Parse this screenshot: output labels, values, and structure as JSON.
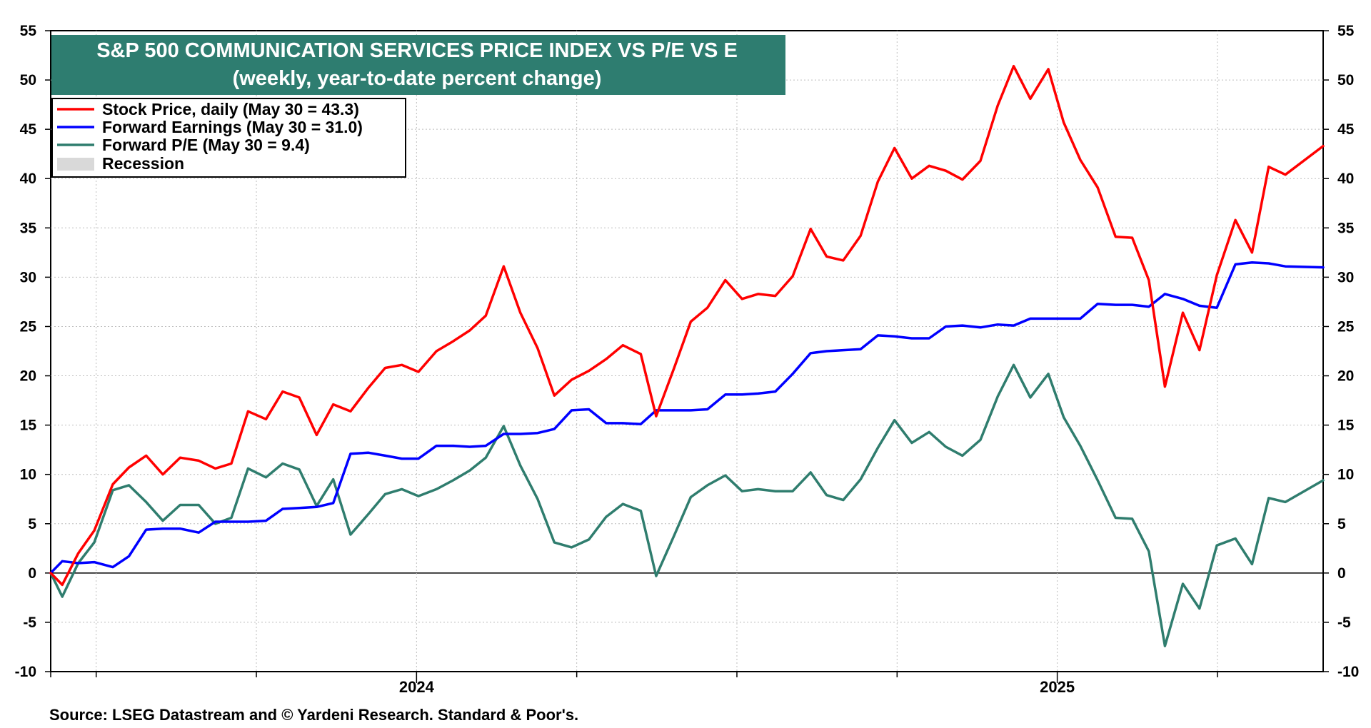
{
  "chart_data": {
    "type": "line",
    "title": "S&P 500 COMMUNICATION SERVICES PRICE INDEX VS P/E VS E",
    "subtitle": "(weekly, year-to-date percent change)",
    "source": "Source: LSEG Datastream and © Yardeni Research. Standard & Poor's.",
    "ylim": [
      -10,
      55
    ],
    "yticks": [
      55,
      50,
      45,
      40,
      35,
      30,
      25,
      20,
      15,
      10,
      5,
      0,
      -5,
      -10
    ],
    "xlim": [
      2023.429,
      2025.415
    ],
    "year_labels": [
      {
        "label": "2024",
        "x": 2024.0
      },
      {
        "label": "2025",
        "x": 2025.0
      }
    ],
    "grid": true,
    "legend_position": "top-left",
    "colors": {
      "title_bg": "#2e7d70",
      "stock_price": "#ff0000",
      "forward_earnings": "#0000ff",
      "forward_pe": "#2f7d6e",
      "recession": "#d9d9d9"
    },
    "legend": [
      {
        "key": "stock_price",
        "label": "Stock Price, daily (May 30 = 43.3)",
        "type": "line"
      },
      {
        "key": "forward_earnings",
        "label": "Forward Earnings (May 30 = 31.0)",
        "type": "line"
      },
      {
        "key": "forward_pe",
        "label": "Forward P/E (May 30 = 9.4)",
        "type": "line"
      },
      {
        "key": "recession",
        "label": "Recession",
        "type": "box"
      }
    ],
    "series": [
      {
        "name": "Stock Price, daily (May 30 = 43.3)",
        "key": "stock_price",
        "points": [
          [
            2023.429,
            0.0
          ],
          [
            2023.447,
            -1.2
          ],
          [
            2023.472,
            2.0
          ],
          [
            2023.497,
            4.3
          ],
          [
            2023.526,
            9.0
          ],
          [
            2023.551,
            10.7
          ],
          [
            2023.578,
            11.9
          ],
          [
            2023.604,
            10.0
          ],
          [
            2023.631,
            11.7
          ],
          [
            2023.66,
            11.4
          ],
          [
            2023.686,
            10.6
          ],
          [
            2023.711,
            11.1
          ],
          [
            2023.737,
            16.4
          ],
          [
            2023.765,
            15.6
          ],
          [
            2023.791,
            18.4
          ],
          [
            2023.817,
            17.8
          ],
          [
            2023.844,
            14.0
          ],
          [
            2023.87,
            17.1
          ],
          [
            2023.897,
            16.4
          ],
          [
            2023.925,
            18.8
          ],
          [
            2023.951,
            20.8
          ],
          [
            2023.977,
            21.1
          ],
          [
            2024.003,
            20.4
          ],
          [
            2024.031,
            22.5
          ],
          [
            2024.057,
            23.5
          ],
          [
            2024.083,
            24.6
          ],
          [
            2024.108,
            26.1
          ],
          [
            2024.136,
            31.1
          ],
          [
            2024.162,
            26.4
          ],
          [
            2024.189,
            22.8
          ],
          [
            2024.215,
            18.0
          ],
          [
            2024.242,
            19.6
          ],
          [
            2024.269,
            20.5
          ],
          [
            2024.296,
            21.7
          ],
          [
            2024.322,
            23.1
          ],
          [
            2024.35,
            22.2
          ],
          [
            2024.374,
            15.9
          ],
          [
            2024.402,
            20.8
          ],
          [
            2024.428,
            25.5
          ],
          [
            2024.454,
            26.9
          ],
          [
            2024.482,
            29.7
          ],
          [
            2024.508,
            27.8
          ],
          [
            2024.533,
            28.3
          ],
          [
            2024.56,
            28.1
          ],
          [
            2024.587,
            30.1
          ],
          [
            2024.615,
            34.9
          ],
          [
            2024.64,
            32.1
          ],
          [
            2024.666,
            31.7
          ],
          [
            2024.693,
            34.2
          ],
          [
            2024.72,
            39.7
          ],
          [
            2024.746,
            43.1
          ],
          [
            2024.773,
            40.0
          ],
          [
            2024.8,
            41.3
          ],
          [
            2024.826,
            40.8
          ],
          [
            2024.852,
            39.9
          ],
          [
            2024.88,
            41.8
          ],
          [
            2024.907,
            47.4
          ],
          [
            2024.932,
            51.4
          ],
          [
            2024.958,
            48.1
          ],
          [
            2024.986,
            51.1
          ],
          [
            2025.01,
            45.7
          ],
          [
            2025.036,
            41.9
          ],
          [
            2025.063,
            39.1
          ],
          [
            2025.091,
            34.1
          ],
          [
            2025.117,
            34.0
          ],
          [
            2025.143,
            29.7
          ],
          [
            2025.168,
            18.9
          ],
          [
            2025.196,
            26.4
          ],
          [
            2025.222,
            22.6
          ],
          [
            2025.249,
            30.2
          ],
          [
            2025.278,
            35.8
          ],
          [
            2025.304,
            32.5
          ],
          [
            2025.33,
            41.2
          ],
          [
            2025.356,
            40.4
          ],
          [
            2025.415,
            43.3
          ]
        ]
      },
      {
        "name": "Forward Earnings (May 30 = 31.0)",
        "key": "forward_earnings",
        "points": [
          [
            2023.429,
            0.0
          ],
          [
            2023.447,
            1.2
          ],
          [
            2023.472,
            1.0
          ],
          [
            2023.497,
            1.1
          ],
          [
            2023.526,
            0.6
          ],
          [
            2023.551,
            1.7
          ],
          [
            2023.578,
            4.4
          ],
          [
            2023.604,
            4.5
          ],
          [
            2023.631,
            4.5
          ],
          [
            2023.66,
            4.1
          ],
          [
            2023.686,
            5.2
          ],
          [
            2023.711,
            5.2
          ],
          [
            2023.737,
            5.2
          ],
          [
            2023.765,
            5.3
          ],
          [
            2023.791,
            6.5
          ],
          [
            2023.817,
            6.6
          ],
          [
            2023.844,
            6.7
          ],
          [
            2023.87,
            7.1
          ],
          [
            2023.897,
            12.1
          ],
          [
            2023.925,
            12.2
          ],
          [
            2023.951,
            11.9
          ],
          [
            2023.977,
            11.6
          ],
          [
            2024.003,
            11.6
          ],
          [
            2024.031,
            12.9
          ],
          [
            2024.057,
            12.9
          ],
          [
            2024.083,
            12.8
          ],
          [
            2024.108,
            12.9
          ],
          [
            2024.136,
            14.1
          ],
          [
            2024.162,
            14.1
          ],
          [
            2024.189,
            14.2
          ],
          [
            2024.215,
            14.6
          ],
          [
            2024.242,
            16.5
          ],
          [
            2024.269,
            16.6
          ],
          [
            2024.296,
            15.2
          ],
          [
            2024.322,
            15.2
          ],
          [
            2024.35,
            15.1
          ],
          [
            2024.374,
            16.5
          ],
          [
            2024.402,
            16.5
          ],
          [
            2024.428,
            16.5
          ],
          [
            2024.454,
            16.6
          ],
          [
            2024.482,
            18.1
          ],
          [
            2024.508,
            18.1
          ],
          [
            2024.533,
            18.2
          ],
          [
            2024.56,
            18.4
          ],
          [
            2024.587,
            20.2
          ],
          [
            2024.615,
            22.3
          ],
          [
            2024.64,
            22.5
          ],
          [
            2024.666,
            22.6
          ],
          [
            2024.693,
            22.7
          ],
          [
            2024.72,
            24.1
          ],
          [
            2024.746,
            24.0
          ],
          [
            2024.773,
            23.8
          ],
          [
            2024.8,
            23.8
          ],
          [
            2024.826,
            25.0
          ],
          [
            2024.852,
            25.1
          ],
          [
            2024.88,
            24.9
          ],
          [
            2024.907,
            25.2
          ],
          [
            2024.932,
            25.1
          ],
          [
            2024.958,
            25.8
          ],
          [
            2024.986,
            25.8
          ],
          [
            2025.01,
            25.8
          ],
          [
            2025.036,
            25.8
          ],
          [
            2025.063,
            27.3
          ],
          [
            2025.091,
            27.2
          ],
          [
            2025.117,
            27.2
          ],
          [
            2025.143,
            27.0
          ],
          [
            2025.168,
            28.3
          ],
          [
            2025.196,
            27.8
          ],
          [
            2025.222,
            27.1
          ],
          [
            2025.249,
            26.9
          ],
          [
            2025.278,
            31.3
          ],
          [
            2025.304,
            31.5
          ],
          [
            2025.33,
            31.4
          ],
          [
            2025.356,
            31.1
          ],
          [
            2025.415,
            31.0
          ]
        ]
      },
      {
        "name": "Forward P/E (May 30 = 9.4)",
        "key": "forward_pe",
        "points": [
          [
            2023.429,
            0.0
          ],
          [
            2023.447,
            -2.4
          ],
          [
            2023.472,
            1.0
          ],
          [
            2023.497,
            3.1
          ],
          [
            2023.526,
            8.4
          ],
          [
            2023.551,
            8.9
          ],
          [
            2023.578,
            7.2
          ],
          [
            2023.604,
            5.3
          ],
          [
            2023.631,
            6.9
          ],
          [
            2023.66,
            6.9
          ],
          [
            2023.686,
            5.0
          ],
          [
            2023.711,
            5.6
          ],
          [
            2023.737,
            10.6
          ],
          [
            2023.765,
            9.7
          ],
          [
            2023.791,
            11.1
          ],
          [
            2023.817,
            10.5
          ],
          [
            2023.844,
            6.8
          ],
          [
            2023.87,
            9.5
          ],
          [
            2023.897,
            3.9
          ],
          [
            2023.925,
            6.0
          ],
          [
            2023.951,
            8.0
          ],
          [
            2023.977,
            8.5
          ],
          [
            2024.003,
            7.8
          ],
          [
            2024.031,
            8.5
          ],
          [
            2024.057,
            9.4
          ],
          [
            2024.083,
            10.4
          ],
          [
            2024.108,
            11.7
          ],
          [
            2024.136,
            14.9
          ],
          [
            2024.162,
            10.9
          ],
          [
            2024.189,
            7.5
          ],
          [
            2024.215,
            3.1
          ],
          [
            2024.242,
            2.6
          ],
          [
            2024.269,
            3.4
          ],
          [
            2024.296,
            5.7
          ],
          [
            2024.322,
            7.0
          ],
          [
            2024.35,
            6.3
          ],
          [
            2024.374,
            -0.3
          ],
          [
            2024.402,
            3.8
          ],
          [
            2024.428,
            7.7
          ],
          [
            2024.454,
            8.9
          ],
          [
            2024.482,
            9.9
          ],
          [
            2024.508,
            8.3
          ],
          [
            2024.533,
            8.5
          ],
          [
            2024.56,
            8.3
          ],
          [
            2024.587,
            8.3
          ],
          [
            2024.615,
            10.2
          ],
          [
            2024.64,
            7.9
          ],
          [
            2024.666,
            7.4
          ],
          [
            2024.693,
            9.5
          ],
          [
            2024.72,
            12.7
          ],
          [
            2024.746,
            15.5
          ],
          [
            2024.773,
            13.2
          ],
          [
            2024.8,
            14.3
          ],
          [
            2024.826,
            12.8
          ],
          [
            2024.852,
            11.9
          ],
          [
            2024.88,
            13.5
          ],
          [
            2024.907,
            17.9
          ],
          [
            2024.932,
            21.1
          ],
          [
            2024.958,
            17.8
          ],
          [
            2024.986,
            20.2
          ],
          [
            2025.01,
            15.8
          ],
          [
            2025.036,
            12.9
          ],
          [
            2025.063,
            9.4
          ],
          [
            2025.091,
            5.6
          ],
          [
            2025.117,
            5.5
          ],
          [
            2025.143,
            2.2
          ],
          [
            2025.168,
            -7.4
          ],
          [
            2025.196,
            -1.1
          ],
          [
            2025.222,
            -3.6
          ],
          [
            2025.249,
            2.8
          ],
          [
            2025.278,
            3.5
          ],
          [
            2025.304,
            0.9
          ],
          [
            2025.33,
            7.6
          ],
          [
            2025.356,
            7.2
          ],
          [
            2025.415,
            9.4
          ]
        ]
      }
    ]
  }
}
